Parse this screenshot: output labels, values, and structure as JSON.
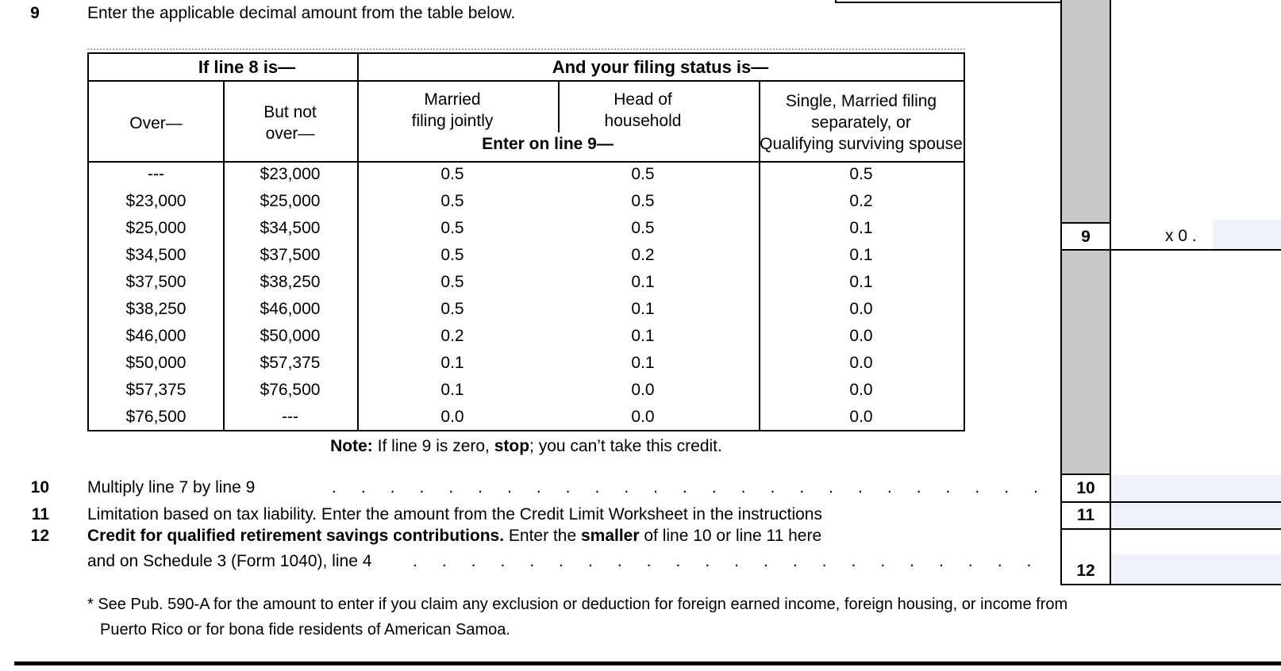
{
  "colors": {
    "gray_column": "#c8c8c8",
    "field_fill": "#eef1fa",
    "line": "#000000"
  },
  "line9": {
    "number": "9",
    "text": "Enter the applicable decimal amount from the table below.",
    "multiplier_prefix": "x 0 .",
    "value": ""
  },
  "table": {
    "header": {
      "if_line8": "If line 8 is—",
      "filing_status": "And your filing status is—",
      "over": "Over—",
      "but_not_over_lines": [
        "But not",
        "over—"
      ],
      "married_lines": [
        "Married",
        "filing jointly"
      ],
      "head_lines": [
        "Head of",
        "household"
      ],
      "enter_on_line9": "Enter on line 9—",
      "single_lines": [
        "Single, Married filing",
        "separately, or",
        "Qualifying surviving spouse"
      ]
    },
    "rows": [
      [
        "---",
        "$23,000",
        "0.5",
        "0.5",
        "0.5"
      ],
      [
        "$23,000",
        "$25,000",
        "0.5",
        "0.5",
        "0.2"
      ],
      [
        "$25,000",
        "$34,500",
        "0.5",
        "0.5",
        "0.1"
      ],
      [
        "$34,500",
        "$37,500",
        "0.5",
        "0.2",
        "0.1"
      ],
      [
        "$37,500",
        "$38,250",
        "0.5",
        "0.1",
        "0.1"
      ],
      [
        "$38,250",
        "$46,000",
        "0.5",
        "0.1",
        "0.0"
      ],
      [
        "$46,000",
        "$50,000",
        "0.2",
        "0.1",
        "0.0"
      ],
      [
        "$50,000",
        "$57,375",
        "0.1",
        "0.1",
        "0.0"
      ],
      [
        "$57,375",
        "$76,500",
        "0.1",
        "0.0",
        "0.0"
      ],
      [
        "$76,500",
        "---",
        "0.0",
        "0.0",
        "0.0"
      ]
    ]
  },
  "note": {
    "label": "Note:",
    "text_before_stop": " If line 9 is zero, ",
    "stop": "stop",
    "text_after_stop": "; you can’t take this credit."
  },
  "line10": {
    "number": "10",
    "text": "Multiply line 7 by line 9",
    "dots": "..........................",
    "value": ""
  },
  "line11": {
    "number": "11",
    "text": "Limitation based on tax liability. Enter the amount from the Credit Limit Worksheet in the instructions",
    "value": ""
  },
  "line12": {
    "number": "12",
    "bold_lead": "Credit for qualified retirement savings contributions.",
    "text_mid": " Enter the ",
    "bold_smaller": "smaller",
    "text_tail": " of line 10 or line 11 here",
    "line2": "and on Schedule 3 (Form 1040), line 4",
    "dots": "......................",
    "value": ""
  },
  "footnote": {
    "line1": "* See Pub. 590-A for the amount to enter if you claim any exclusion or deduction for foreign earned income, foreign housing, or income from",
    "line2": "Puerto Rico or for bona fide residents of American Samoa."
  }
}
